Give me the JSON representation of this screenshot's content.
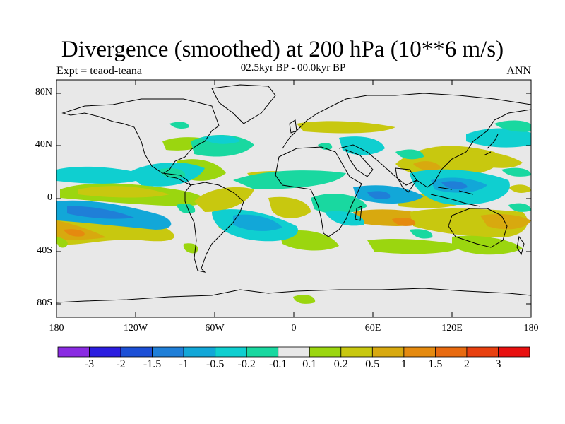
{
  "title": "Divergence (smoothed) at 200 hPa (10**6 m/s)",
  "expt_label": "Expt = teaod-teana",
  "period_label": "02.5kyr BP - 00.0kyr BP",
  "season_label": "ANN",
  "lat_ticks": [
    "80N",
    "40N",
    "0",
    "40S",
    "80S"
  ],
  "lon_ticks": [
    "180",
    "120W",
    "60W",
    "0",
    "60E",
    "120E",
    "180"
  ],
  "colorbar": {
    "colors": [
      "#8a2be2",
      "#2b1de0",
      "#1c4fd6",
      "#1f7fd8",
      "#12a7d8",
      "#0fcfd0",
      "#19d8a0",
      "#e8e8e8",
      "#9bd60f",
      "#c8c80f",
      "#d8a90f",
      "#e58a0f",
      "#e86a0f",
      "#e8400f",
      "#e8100f"
    ],
    "labels": [
      "-3",
      "-2",
      "-1.5",
      "-1",
      "-0.5",
      "-0.2",
      "-0.1",
      "0.1",
      "0.2",
      "0.5",
      "1",
      "1.5",
      "2",
      "3"
    ]
  },
  "colors": {
    "background": "#e8e8e8",
    "coast": "#000000"
  }
}
